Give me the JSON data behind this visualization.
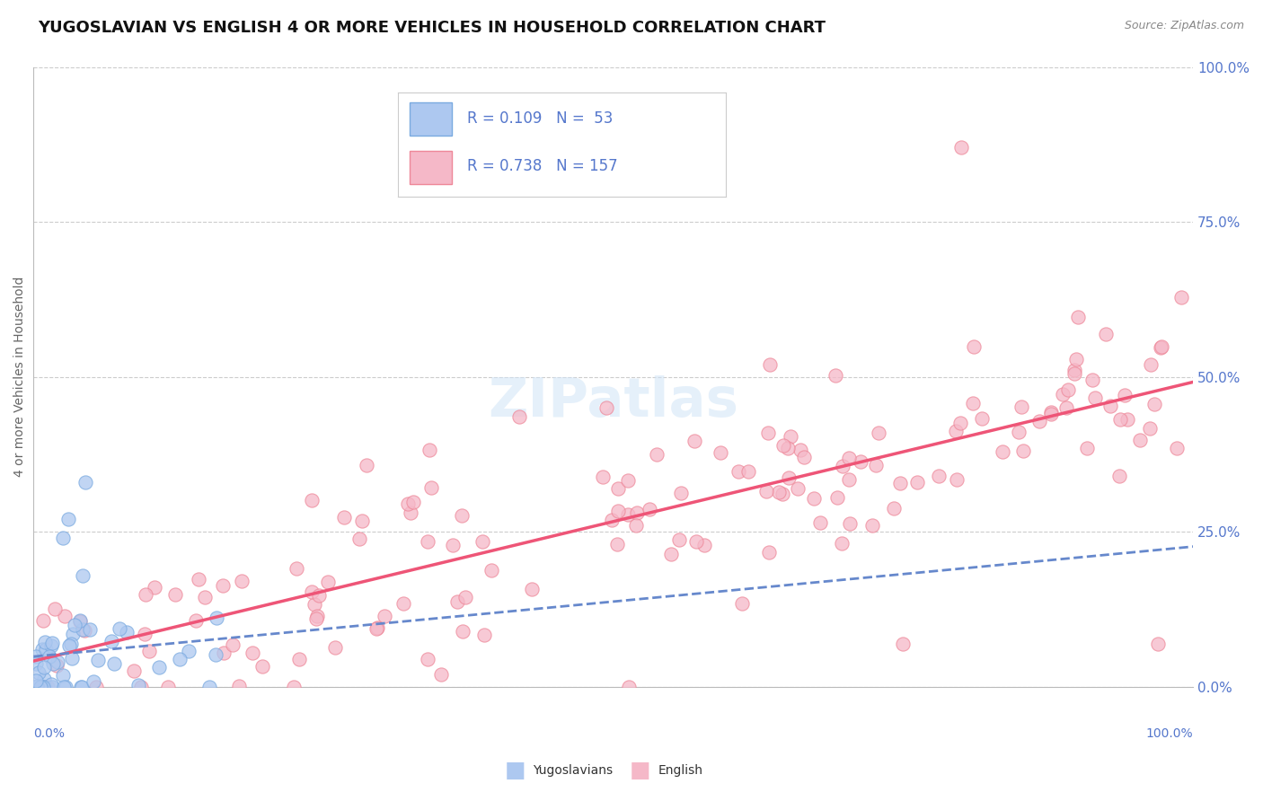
{
  "title": "YUGOSLAVIAN VS ENGLISH 4 OR MORE VEHICLES IN HOUSEHOLD CORRELATION CHART",
  "source": "Source: ZipAtlas.com",
  "ylabel": "4 or more Vehicles in Household",
  "right_yticks": [
    "0.0%",
    "25.0%",
    "50.0%",
    "75.0%",
    "100.0%"
  ],
  "right_ytick_vals": [
    0,
    25,
    50,
    75,
    100
  ],
  "r_yugo": "0.109",
  "n_yugo": "53",
  "r_english": "0.738",
  "n_english": "157",
  "color_yugo_fill": "#adc8f0",
  "color_yugo_edge": "#7aaae0",
  "color_english_fill": "#f5b8c8",
  "color_english_edge": "#ee8899",
  "color_yugo_line": "#6688cc",
  "color_english_line": "#ee5577",
  "color_axis_labels": "#5577cc",
  "color_title": "#111111",
  "color_source": "#888888",
  "color_grid": "#cccccc",
  "watermark": "ZIPatlas",
  "bg_color": "#ffffff"
}
